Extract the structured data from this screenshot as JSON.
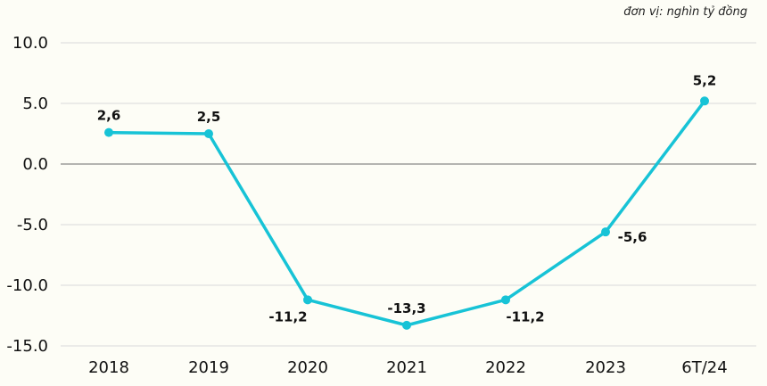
{
  "unit_note": "đơn vị: nghìn tỷ đồng",
  "chart_data": {
    "type": "line",
    "categories": [
      "2018",
      "2019",
      "2020",
      "2021",
      "2022",
      "2023",
      "6T/24"
    ],
    "series": [
      {
        "values": [
          2.6,
          2.5,
          -11.2,
          -13.3,
          -11.2,
          -5.6,
          5.2
        ]
      }
    ],
    "data_labels": [
      "2,6",
      "2,5",
      "-11,2",
      "-13,3",
      "-11,2",
      "-5,6",
      "5,2"
    ],
    "yticks": [
      10,
      5,
      0,
      -5,
      -10,
      -15
    ],
    "ytick_labels": [
      "10.0",
      "5.0",
      "0.0",
      "-5.0",
      "-10.0",
      "-15.0"
    ],
    "ylim": [
      -15,
      10
    ],
    "line_color": "#17c3d6",
    "grid": true,
    "zero_line_color": "#888888",
    "grid_color": "#d9d9d9"
  }
}
